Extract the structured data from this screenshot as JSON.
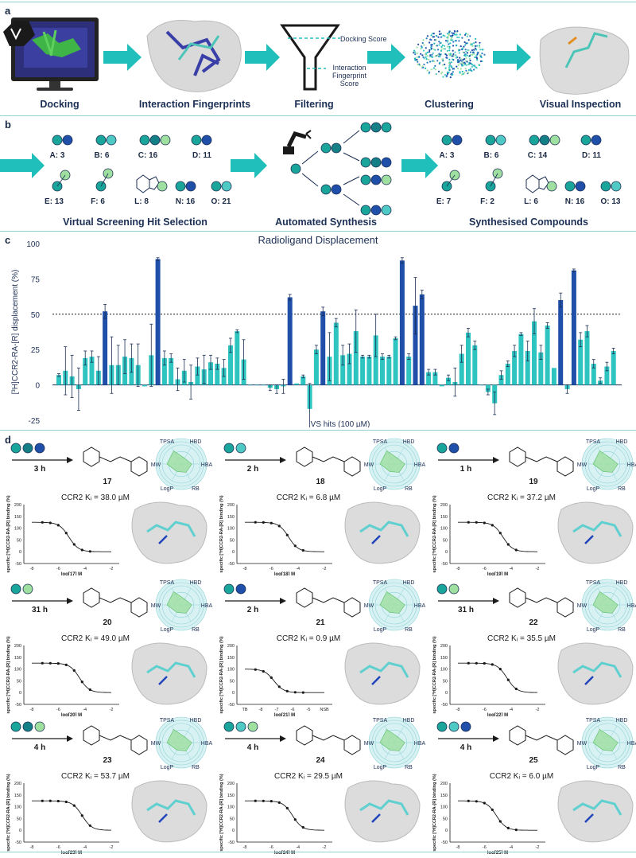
{
  "panel_a": {
    "letter": "a",
    "steps": [
      "Docking",
      "Interaction Fingerprints",
      "Filtering",
      "Clustering",
      "Visual Inspection"
    ],
    "funnel_labels": [
      "Docking\nScore",
      "Interaction\nFingerprint\nScore"
    ]
  },
  "panel_b": {
    "letter": "b",
    "left_title": "Virtual Screening Hit Selection",
    "center_title": "Automated Synthesis",
    "right_title": "Synthesised Compounds",
    "left_items": [
      "A: 3",
      "B: 6",
      "C: 16",
      "D: 11",
      "E: 13",
      "F: 6",
      "L: 8",
      "N: 16",
      "O: 21"
    ],
    "right_items": [
      "A: 3",
      "B: 6",
      "C: 14",
      "D: 11",
      "E: 7",
      "F: 2",
      "L: 6",
      "N: 16",
      "O: 13"
    ]
  },
  "panel_c": {
    "letter": "c",
    "chart_data": {
      "type": "bar",
      "title": "Radioligand Displacement",
      "ylabel": "[³H]CCR2-RA-[R] displacement (%)",
      "xlabel": "VS hits (100 µM)",
      "ylim": [
        -25,
        100
      ],
      "yticks": [
        -25,
        0,
        25,
        50,
        75,
        100
      ],
      "threshold": 50,
      "colors": {
        "hit": "#1f4fa8",
        "nonhit": "#2ec4c0"
      },
      "values": [
        7,
        10,
        6,
        -3,
        19,
        20,
        10,
        52,
        14,
        14,
        20,
        19,
        14,
        -1,
        21,
        89,
        19,
        19,
        4,
        10,
        2,
        13,
        11,
        16,
        15,
        12,
        28,
        38,
        18,
        0,
        0,
        0,
        -2,
        -3,
        -1,
        62,
        1,
        6,
        -17,
        25,
        52,
        20,
        44,
        21,
        22,
        38,
        20,
        20,
        35,
        20,
        20,
        33,
        88,
        20,
        56,
        64,
        9,
        9,
        -1,
        5,
        2,
        22,
        37,
        28,
        0,
        -5,
        -13,
        7,
        15,
        24,
        36,
        24,
        45,
        23,
        42,
        12,
        60,
        -3,
        81,
        32,
        38,
        15,
        3,
        13,
        24
      ],
      "errors": [
        1,
        17,
        15,
        15,
        5,
        4,
        10,
        5,
        20,
        14,
        12,
        10,
        15,
        0,
        22,
        1,
        5,
        3,
        8,
        8,
        12,
        6,
        10,
        5,
        4,
        6,
        5,
        1,
        14,
        0,
        0,
        0,
        2,
        3,
        5,
        2,
        0,
        1,
        18,
        3,
        3,
        17,
        3,
        7,
        7,
        15,
        1,
        1,
        15,
        2,
        1,
        1,
        2,
        2,
        20,
        3,
        2,
        2,
        0,
        2,
        10,
        6,
        3,
        3,
        0,
        2,
        8,
        3,
        2,
        4,
        1,
        7,
        9,
        5,
        2,
        0,
        5,
        3,
        1,
        5,
        4,
        3,
        2,
        3,
        2
      ],
      "hits_index": [
        7,
        15,
        35,
        40,
        52,
        54,
        55,
        76,
        78
      ]
    }
  },
  "panel_d": {
    "letter": "d",
    "compounds": [
      {
        "num": "17",
        "time": "3 h",
        "ki": "CCR2 Kᵢ = 38.0 µM",
        "xlabel": "log[17] M",
        "dots": [
          "#1aa59a",
          "#157f86",
          "#1f4fa8"
        ]
      },
      {
        "num": "18",
        "time": "2 h",
        "ki": "CCR2 Kᵢ = 6.8 µM",
        "xlabel": "log[18] M",
        "dots": [
          "#1aa59a",
          "#4ec9c4"
        ]
      },
      {
        "num": "19",
        "time": "1 h",
        "ki": "CCR2 Kᵢ = 37.2 µM",
        "xlabel": "log[19] M",
        "dots": [
          "#1aa59a",
          "#1f4fa8"
        ]
      },
      {
        "num": "20",
        "time": "31 h",
        "ki": "CCR2 Kᵢ = 49.0 µM",
        "xlabel": "log[20] M",
        "dots": [
          "#1aa59a",
          "#9fe0a0"
        ]
      },
      {
        "num": "21",
        "time": "2 h",
        "ki": "CCR2 Kᵢ = 0.9 µM",
        "xlabel": "log[21] M",
        "dots": [
          "#1aa59a",
          "#1f4fa8"
        ]
      },
      {
        "num": "22",
        "time": "31 h",
        "ki": "CCR2 Kᵢ = 35.5 µM",
        "xlabel": "log[22] M",
        "dots": [
          "#1aa59a",
          "#9fe0a0"
        ]
      },
      {
        "num": "23",
        "time": "4 h",
        "ki": "CCR2 Kᵢ = 53.7 µM",
        "xlabel": "log[23] M",
        "dots": [
          "#1aa59a",
          "#157f86",
          "#9fe0a0"
        ]
      },
      {
        "num": "24",
        "time": "4 h",
        "ki": "CCR2 Kᵢ = 29.5 µM",
        "xlabel": "log[24] M",
        "dots": [
          "#1aa59a",
          "#4ec9c4",
          "#9fe0a0"
        ]
      },
      {
        "num": "25",
        "time": "4 h",
        "ki": "CCR2 Kᵢ = 6.0 µM",
        "xlabel": "log[25] M",
        "dots": [
          "#1aa59a",
          "#4ec9c4",
          "#1f4fa8"
        ]
      }
    ],
    "curve_ylabel": "specific [³H]CCR2-RA-[R] binding (%)",
    "radar_axes": [
      "TPSA",
      "HBD",
      "HBA",
      "RB",
      "LogP",
      "MW"
    ],
    "curve_yticks": [
      "-50",
      "0",
      "50",
      "100",
      "150",
      "200"
    ],
    "curve_xticks": [
      "-8",
      "-6",
      "-4",
      "-2"
    ],
    "curve21_xticks": [
      "TB",
      "-8",
      "-7",
      "-6",
      "-5",
      "NSB"
    ]
  }
}
